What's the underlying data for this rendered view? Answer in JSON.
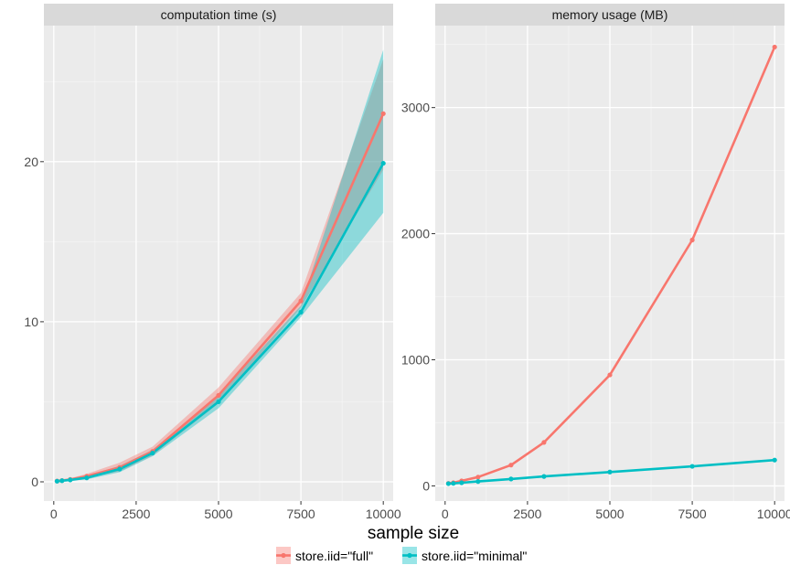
{
  "chart_data": [
    {
      "type": "line",
      "title": "computation time (s)",
      "xlabel": "sample size",
      "ylabel": "",
      "xlim": [
        -300,
        10300
      ],
      "ylim": [
        -1.2,
        28.5
      ],
      "xticks": [
        0,
        2500,
        5000,
        7500,
        10000
      ],
      "xtick_labels": [
        "0",
        "2500",
        "5000",
        "7500",
        "10000"
      ],
      "yticks": [
        0,
        10,
        20
      ],
      "ytick_labels": [
        "0",
        "10",
        "20"
      ],
      "grid": true,
      "x": [
        100,
        250,
        500,
        1000,
        2000,
        3000,
        5000,
        7500,
        10000
      ],
      "series": [
        {
          "name": "store.iid=\"full\"",
          "color": "#F8766D",
          "values": [
            0.05,
            0.08,
            0.15,
            0.35,
            0.9,
            1.9,
            5.4,
            11.3,
            23.0
          ],
          "lower": [
            0.0,
            0.04,
            0.1,
            0.25,
            0.65,
            1.65,
            4.9,
            10.9,
            19.5
          ],
          "upper": [
            0.1,
            0.12,
            0.22,
            0.5,
            1.2,
            2.2,
            5.9,
            11.8,
            26.4
          ]
        },
        {
          "name": "store.iid=\"minimal\"",
          "color": "#00BFC4",
          "values": [
            0.04,
            0.07,
            0.12,
            0.25,
            0.8,
            1.8,
            5.0,
            10.6,
            19.9
          ],
          "lower": [
            0.0,
            0.03,
            0.08,
            0.15,
            0.6,
            1.6,
            4.6,
            10.3,
            16.8
          ],
          "upper": [
            0.08,
            0.11,
            0.18,
            0.35,
            1.0,
            2.0,
            5.4,
            11.0,
            27.0
          ]
        }
      ]
    },
    {
      "type": "line",
      "title": "memory usage (MB)",
      "xlabel": "sample size",
      "ylabel": "",
      "xlim": [
        -300,
        10300
      ],
      "ylim": [
        -120,
        3650
      ],
      "xticks": [
        0,
        2500,
        5000,
        7500,
        10000
      ],
      "xtick_labels": [
        "0",
        "2500",
        "5000",
        "7500",
        "10000"
      ],
      "yticks": [
        0,
        1000,
        2000,
        3000
      ],
      "ytick_labels": [
        "0",
        "1000",
        "2000",
        "3000"
      ],
      "grid": true,
      "x": [
        100,
        250,
        500,
        1000,
        2000,
        3000,
        5000,
        7500,
        10000
      ],
      "series": [
        {
          "name": "store.iid=\"full\"",
          "color": "#F8766D",
          "values": [
            20,
            25,
            40,
            70,
            165,
            345,
            880,
            1950,
            3480
          ]
        },
        {
          "name": "store.iid=\"minimal\"",
          "color": "#00BFC4",
          "values": [
            18,
            20,
            25,
            35,
            55,
            75,
            110,
            155,
            205
          ]
        }
      ]
    }
  ],
  "shared": {
    "xlabel": "sample size",
    "legend_position": "bottom"
  }
}
